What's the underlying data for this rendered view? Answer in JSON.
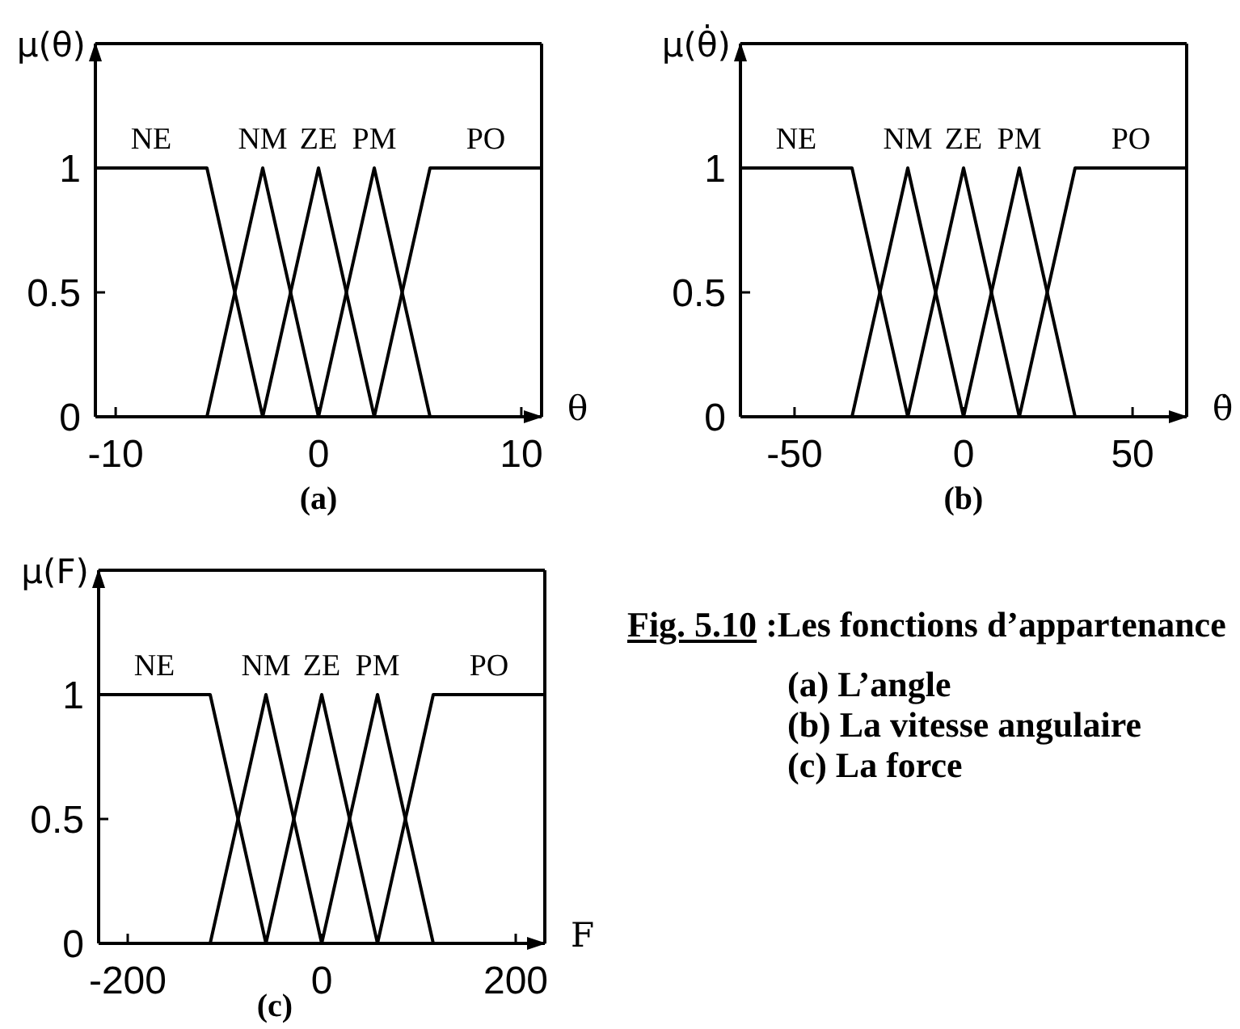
{
  "chart_data": [
    {
      "type": "line",
      "title": "(a)",
      "xlabel": "θ",
      "ylabel": "μ(θ)",
      "xlim": [
        -11,
        11
      ],
      "xticks": [
        -10,
        0,
        10
      ],
      "ylim": [
        0,
        1.5
      ],
      "yticks": [
        0,
        0.5,
        1
      ],
      "marker": "none",
      "line_style": "solid",
      "series": [
        {
          "name": "NE",
          "color": "#000000",
          "x": [
            -11,
            -5.5,
            -2.75
          ],
          "values": [
            1,
            1,
            0
          ]
        },
        {
          "name": "NM",
          "color": "#000000",
          "x": [
            -5.5,
            -2.75,
            0
          ],
          "values": [
            0,
            1,
            0
          ]
        },
        {
          "name": "ZE",
          "color": "#000000",
          "x": [
            -2.75,
            0,
            2.75
          ],
          "values": [
            0,
            1,
            0
          ]
        },
        {
          "name": "PM",
          "color": "#000000",
          "x": [
            0,
            2.75,
            5.5
          ],
          "values": [
            0,
            1,
            0
          ]
        },
        {
          "name": "PO",
          "color": "#000000",
          "x": [
            2.75,
            5.5,
            11
          ],
          "values": [
            0,
            1,
            1
          ]
        }
      ]
    },
    {
      "type": "line",
      "title": "(b)",
      "xlabel": "θ̇",
      "ylabel": "μ(θ̇)",
      "xlim": [
        -66,
        66
      ],
      "xticks": [
        -50,
        0,
        50
      ],
      "ylim": [
        0,
        1.5
      ],
      "yticks": [
        0,
        0.5,
        1
      ],
      "marker": "none",
      "line_style": "solid",
      "series": [
        {
          "name": "NE",
          "color": "#000000",
          "x": [
            -66,
            -33,
            -16.5
          ],
          "values": [
            1,
            1,
            0
          ]
        },
        {
          "name": "NM",
          "color": "#000000",
          "x": [
            -33,
            -16.5,
            0
          ],
          "values": [
            0,
            1,
            0
          ]
        },
        {
          "name": "ZE",
          "color": "#000000",
          "x": [
            -16.5,
            0,
            16.5
          ],
          "values": [
            0,
            1,
            0
          ]
        },
        {
          "name": "PM",
          "color": "#000000",
          "x": [
            0,
            16.5,
            33
          ],
          "values": [
            0,
            1,
            0
          ]
        },
        {
          "name": "PO",
          "color": "#000000",
          "x": [
            16.5,
            33,
            66
          ],
          "values": [
            0,
            1,
            1
          ]
        }
      ]
    },
    {
      "type": "line",
      "title": "(c)",
      "xlabel": "F",
      "ylabel": "μ(F)",
      "xlim": [
        -230,
        230
      ],
      "xticks": [
        -200,
        0,
        200
      ],
      "ylim": [
        0,
        1.5
      ],
      "yticks": [
        0,
        0.5,
        1
      ],
      "marker": "none",
      "line_style": "solid",
      "series": [
        {
          "name": "NE",
          "color": "#000000",
          "x": [
            -230,
            -115,
            -57.5
          ],
          "values": [
            1,
            1,
            0
          ]
        },
        {
          "name": "NM",
          "color": "#000000",
          "x": [
            -115,
            -57.5,
            0
          ],
          "values": [
            0,
            1,
            0
          ]
        },
        {
          "name": "ZE",
          "color": "#000000",
          "x": [
            -57.5,
            0,
            57.5
          ],
          "values": [
            0,
            1,
            0
          ]
        },
        {
          "name": "PM",
          "color": "#000000",
          "x": [
            0,
            57.5,
            115
          ],
          "values": [
            0,
            1,
            0
          ]
        },
        {
          "name": "PO",
          "color": "#000000",
          "x": [
            57.5,
            115,
            230
          ],
          "values": [
            0,
            1,
            1
          ]
        }
      ]
    },
    {
      "type": "other",
      "title": "Fig. 5.10 :Les fonctions d’appartenance",
      "annotations": [
        "(a) L’angle",
        "(b) La vitesse angulaire",
        "(c) La force"
      ]
    }
  ]
}
